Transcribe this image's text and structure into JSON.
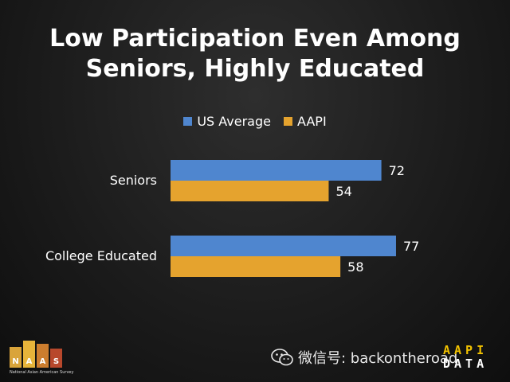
{
  "title_lines": [
    "Low Participation Even Among",
    "Seniors, Highly Educated"
  ],
  "colors": {
    "us_average": "#4f86cf",
    "aapi": "#e5a32e"
  },
  "chart_data": {
    "type": "bar",
    "orientation": "horizontal",
    "title": "Low Participation Even Among Seniors, Highly Educated",
    "categories": [
      "Seniors",
      "College Educated"
    ],
    "series": [
      {
        "name": "US Average",
        "values": [
          72,
          77
        ]
      },
      {
        "name": "AAPI",
        "values": [
          54,
          58
        ]
      }
    ],
    "legend_position": "top",
    "grid": false,
    "data_labels": true
  },
  "logo": {
    "letters": [
      "N",
      "A",
      "A",
      "S"
    ],
    "subtitle": "National Asian American Survey"
  },
  "watermark": {
    "text": "微信号: backontheroad"
  },
  "data_logo": {
    "top": "AAPI",
    "bottom": "DATA"
  }
}
